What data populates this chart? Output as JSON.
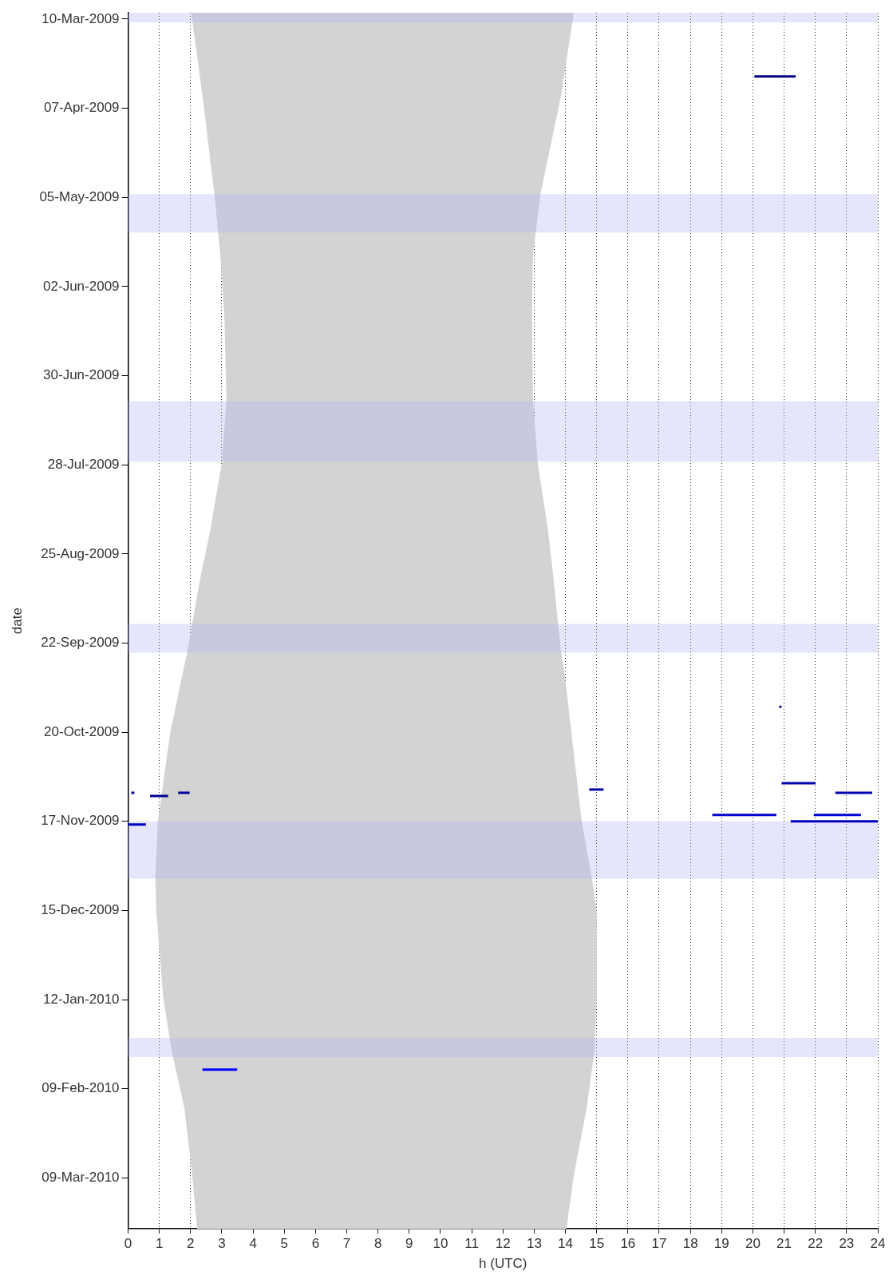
{
  "chart_data": {
    "type": "line",
    "orientation": "horizontal",
    "xlabel": "h (UTC)",
    "ylabel": "date",
    "grid": "x",
    "marker": "none",
    "xlim": [
      0,
      24
    ],
    "xticks": [
      0,
      1,
      2,
      3,
      4,
      5,
      6,
      7,
      8,
      9,
      10,
      11,
      12,
      13,
      14,
      15,
      16,
      17,
      18,
      19,
      20,
      21,
      22,
      23,
      24
    ],
    "ylim": [
      "2010-03-25",
      "2009-03-08"
    ],
    "yticks": [
      {
        "value": "2009-03-10",
        "label": "10-Mar-2009"
      },
      {
        "value": "2009-04-07",
        "label": "07-Apr-2009"
      },
      {
        "value": "2009-05-05",
        "label": "05-May-2009"
      },
      {
        "value": "2009-06-02",
        "label": "02-Jun-2009"
      },
      {
        "value": "2009-06-30",
        "label": "30-Jun-2009"
      },
      {
        "value": "2009-07-28",
        "label": "28-Jul-2009"
      },
      {
        "value": "2009-08-25",
        "label": "25-Aug-2009"
      },
      {
        "value": "2009-09-22",
        "label": "22-Sep-2009"
      },
      {
        "value": "2009-10-20",
        "label": "20-Oct-2009"
      },
      {
        "value": "2009-11-17",
        "label": "17-Nov-2009"
      },
      {
        "value": "2009-12-15",
        "label": "15-Dec-2009"
      },
      {
        "value": "2010-01-12",
        "label": "12-Jan-2010"
      },
      {
        "value": "2010-02-09",
        "label": "09-Feb-2010"
      },
      {
        "value": "2010-03-09",
        "label": "09-Mar-2010"
      }
    ],
    "bands": [
      {
        "axis": "y",
        "from": "2009-03-08",
        "to": "2009-03-11",
        "color": "#b4b4f5"
      },
      {
        "axis": "y",
        "from": "2009-05-04",
        "to": "2009-05-16",
        "color": "#b4b4f5"
      },
      {
        "axis": "y",
        "from": "2009-07-08",
        "to": "2009-07-27",
        "color": "#b4b4f5"
      },
      {
        "axis": "y",
        "from": "2009-09-16",
        "to": "2009-09-25",
        "color": "#b4b4f5"
      },
      {
        "axis": "y",
        "from": "2009-11-17",
        "to": "2009-12-05",
        "color": "#b4b4f5"
      },
      {
        "axis": "y",
        "from": "2010-01-24",
        "to": "2010-01-30",
        "color": "#b4b4f5"
      }
    ],
    "series": [
      {
        "type": "area",
        "color": "#d3d3d3",
        "values": [
          2.02,
          2.38,
          2.76,
          2.95,
          3.08,
          3.15,
          2.99,
          2.62,
          2.3,
          1.89,
          1.8,
          1.35,
          0.95,
          0.87,
          0.9,
          1.12,
          1.39,
          1.8,
          2.05,
          2.21,
          14.03,
          14.27,
          14.68,
          14.93,
          15.0,
          15.0,
          14.85,
          14.52,
          14.19,
          13.94,
          13.86,
          13.62,
          13.45,
          13.12,
          12.96,
          12.93,
          12.96,
          13.2,
          13.86,
          14.27
        ],
        "x": [
          "2009-03-08",
          "2009-04-03",
          "2009-05-04",
          "2009-05-23",
          "2009-06-11",
          "2009-07-08",
          "2009-07-28",
          "2009-08-18",
          "2009-09-02",
          "2009-09-25",
          "2009-09-29",
          "2009-10-20",
          "2009-11-17",
          "2009-12-05",
          "2009-12-15",
          "2010-01-11",
          "2010-01-28",
          "2010-02-15",
          "2010-03-08",
          "2010-03-25",
          "2010-03-25",
          "2010-03-08",
          "2010-02-15",
          "2010-01-28",
          "2010-01-11",
          "2009-12-15",
          "2009-12-05",
          "2009-11-17",
          "2009-10-20",
          "2009-09-29",
          "2009-09-25",
          "2009-09-02",
          "2009-08-18",
          "2009-07-28",
          "2009-07-08",
          "2009-06-11",
          "2009-05-23",
          "2009-05-04",
          "2009-04-03",
          "2009-03-08"
        ]
      },
      {
        "color": "#000080",
        "values": [
          20.05,
          21.37
        ],
        "x": [
          "2009-03-28",
          "2009-03-28"
        ]
      },
      {
        "type": "scatter",
        "marker": "square",
        "color": "#000086",
        "values": [
          20.88
        ],
        "x": [
          "2009-10-12"
        ]
      },
      {
        "color": "#00008c",
        "values": [
          0.1,
          0.2
        ],
        "x": [
          "2009-11-08",
          "2009-11-08"
        ]
      },
      {
        "color": "#000094",
        "values": [
          0.7,
          1.28
        ],
        "x": [
          "2009-11-09",
          "2009-11-09"
        ]
      },
      {
        "color": "#00009c",
        "values": [
          1.6,
          1.97
        ],
        "x": [
          "2009-11-08",
          "2009-11-08"
        ]
      },
      {
        "color": "#0000a4",
        "values": [
          14.76,
          15.22
        ],
        "x": [
          "2009-11-07",
          "2009-11-07"
        ]
      },
      {
        "color": "#0000cc",
        "values": [
          18.7,
          20.75
        ],
        "x": [
          "2009-11-15",
          "2009-11-15"
        ]
      },
      {
        "color": "#0000ac",
        "values": [
          20.92,
          22.01
        ],
        "x": [
          "2009-11-05",
          "2009-11-05"
        ]
      },
      {
        "color": "#0000b4",
        "values": [
          22.64,
          23.82
        ],
        "x": [
          "2009-11-08",
          "2009-11-08"
        ]
      },
      {
        "color": "#0000d8",
        "values": [
          21.95,
          23.46
        ],
        "x": [
          "2009-11-15",
          "2009-11-15"
        ]
      },
      {
        "color": "#0000bc",
        "values": [
          21.21,
          24
        ],
        "x": [
          "2009-11-17",
          "2009-11-17"
        ]
      },
      {
        "color": "#0000c4",
        "values": [
          0,
          0.57
        ],
        "x": [
          "2009-11-18",
          "2009-11-18"
        ]
      },
      {
        "color": "#0000ff",
        "values": [
          2.38,
          3.49
        ],
        "x": [
          "2010-02-03",
          "2010-02-03"
        ]
      }
    ]
  }
}
